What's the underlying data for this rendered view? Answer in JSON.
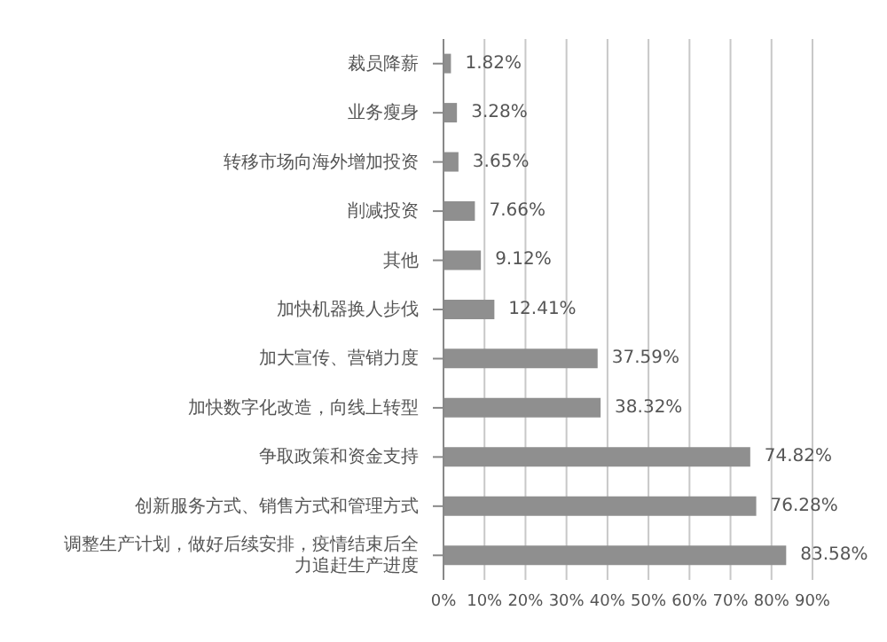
{
  "chart_data": {
    "type": "bar",
    "orientation": "horizontal",
    "categories": [
      "裁员降薪",
      "业务瘦身",
      "转移市场向海外增加投资",
      "削减投资",
      "其他",
      "加快机器换人步伐",
      "加大宣传、营销力度",
      "加快数字化改造，向线上转型",
      "争取政策和资金支持",
      "创新服务方式、销售方式和管理方式",
      "调整生产计划，做好后续安排，疫情结束后全力追赶生产进度"
    ],
    "values": [
      1.82,
      3.28,
      3.65,
      7.66,
      9.12,
      12.41,
      37.59,
      38.32,
      74.82,
      76.28,
      83.58
    ],
    "value_labels": [
      "1.82%",
      "3.28%",
      "3.65%",
      "7.66%",
      "9.12%",
      "12.41%",
      "37.59%",
      "38.32%",
      "74.82%",
      "76.28%",
      "83.58%"
    ],
    "color": "#8f8f8f",
    "xlim": [
      0,
      90
    ],
    "xticks": [
      {
        "value": 0,
        "label": "0%"
      },
      {
        "value": 10,
        "label": "10%"
      },
      {
        "value": 20,
        "label": "20%"
      },
      {
        "value": 30,
        "label": "30%"
      },
      {
        "value": 40,
        "label": "40%"
      },
      {
        "value": 50,
        "label": "50%"
      },
      {
        "value": 60,
        "label": "60%"
      },
      {
        "value": 70,
        "label": "70%"
      },
      {
        "value": 80,
        "label": "80%"
      },
      {
        "value": 90,
        "label": "90%"
      }
    ],
    "grid": "x"
  }
}
